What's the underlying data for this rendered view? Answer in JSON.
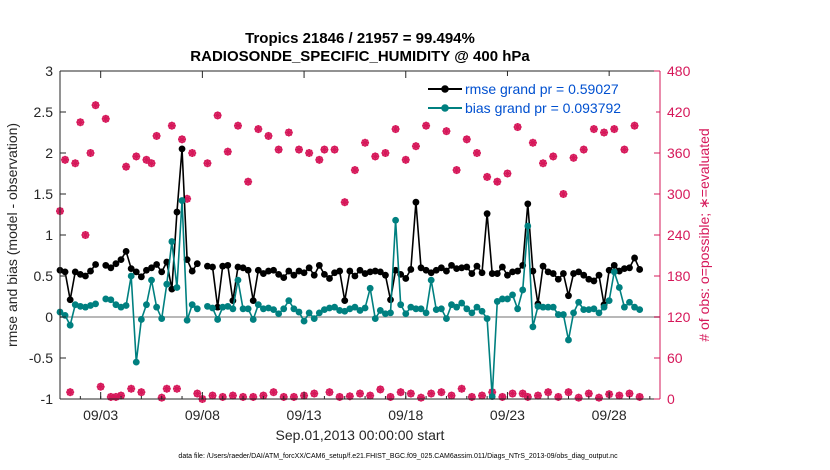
{
  "chart_data": {
    "type": "line",
    "title": "Tropics 21846 / 21957 = 99.494%",
    "subtitle": "RADIOSONDE_SPECIFIC_HUMIDITY @ 400 hPa",
    "xlabel": "Sep.01,2013 00:00:00 start",
    "ylabel_left": "rmse and bias (model - observation)",
    "ylabel_right": "# of obs: o=possible; ∗=evaluated",
    "ylim_left": [
      -1,
      3
    ],
    "ylim_right": [
      0,
      480
    ],
    "xlim": [
      1.0,
      30.5
    ],
    "yticks_left": [
      "-1",
      "-0.5",
      "0",
      "0.5",
      "1",
      "1.5",
      "2",
      "2.5",
      "3"
    ],
    "yticks_right": [
      "0",
      "60",
      "120",
      "180",
      "240",
      "300",
      "360",
      "420",
      "480"
    ],
    "xticks": [
      {
        "day": 3,
        "label": "09/03"
      },
      {
        "day": 8,
        "label": "09/08"
      },
      {
        "day": 13,
        "label": "09/13"
      },
      {
        "day": 18,
        "label": "09/18"
      },
      {
        "day": 23,
        "label": "09/23"
      },
      {
        "day": 28,
        "label": "09/28"
      }
    ],
    "legend": [
      "rmse grand pr = 0.59027",
      "bias grand pr = 0.093792"
    ],
    "colors": {
      "rmse": "#000000",
      "bias": "#008080",
      "obs": "#D6185A",
      "zero": "#B8B8B8",
      "legend_text": "#0050D0"
    },
    "rmse": [
      0.57,
      0.55,
      0.21,
      0.55,
      0.52,
      0.5,
      0.56,
      0.64,
      null,
      0.63,
      0.6,
      0.65,
      0.7,
      0.8,
      0.59,
      0.55,
      0.49,
      0.57,
      0.6,
      0.64,
      0.55,
      0.67,
      0.34,
      1.28,
      2.05,
      0.7,
      0.56,
      0.65,
      null,
      0.62,
      0.61,
      0.12,
      0.62,
      0.63,
      0.2,
      0.61,
      0.6,
      0.57,
      0.2,
      0.57,
      0.53,
      0.56,
      0.57,
      0.52,
      0.48,
      0.56,
      0.51,
      0.56,
      0.54,
      0.6,
      0.51,
      0.63,
      0.52,
      0.47,
      0.54,
      0.56,
      0.2,
      0.56,
      0.5,
      0.57,
      0.53,
      0.55,
      0.56,
      0.55,
      0.51,
      0.21,
      0.57,
      0.52,
      0.47,
      0.58,
      1.4,
      0.6,
      0.57,
      0.54,
      0.57,
      0.6,
      0.56,
      0.63,
      0.59,
      0.6,
      0.61,
      0.53,
      0.62,
      0.54,
      1.26,
      0.53,
      0.53,
      0.61,
      0.51,
      0.55,
      0.56,
      0.63,
      1.38,
      0.56,
      0.16,
      0.62,
      0.55,
      0.53,
      0.46,
      0.53,
      0.26,
      0.53,
      0.55,
      0.51,
      0.46,
      0.44,
      0.51,
      0.15,
      0.57,
      0.63,
      0.56,
      0.59,
      0.6,
      0.72,
      0.58
    ],
    "bias": [
      0.06,
      0.02,
      -0.1,
      0.15,
      0.13,
      0.12,
      0.14,
      0.16,
      null,
      0.22,
      0.21,
      0.15,
      0.12,
      0.14,
      0.5,
      -0.55,
      -0.03,
      0.15,
      0.45,
      0.12,
      -0.02,
      0.4,
      0.92,
      0.36,
      1.42,
      -0.04,
      0.15,
      0.1,
      null,
      0.13,
      0.11,
      -0.03,
      0.12,
      0.13,
      0.1,
      0.45,
      0.1,
      0.1,
      -0.03,
      0.15,
      0.1,
      0.11,
      0.09,
      0.04,
      0.1,
      0.2,
      0.1,
      0.06,
      -0.05,
      0.05,
      -0.02,
      0.05,
      0.09,
      0.11,
      0.12,
      0.08,
      0.07,
      0.1,
      0.12,
      0.08,
      0.11,
      0.35,
      -0.02,
      0.08,
      0.04,
      0.05,
      1.18,
      0.15,
      0.04,
      0.12,
      0.1,
      0.1,
      0.05,
      0.45,
      0.09,
      0.1,
      -0.02,
      0.15,
      0.12,
      0.17,
      0.1,
      0.05,
      0.12,
      0.07,
      -0.02,
      -0.97,
      0.19,
      0.22,
      0.22,
      0.27,
      0.1,
      0.33,
      1.11,
      -0.12,
      0.13,
      0.12,
      0.12,
      0.12,
      0.03,
      0.03,
      -0.28,
      0.05,
      0.18,
      0.09,
      0.09,
      0.1,
      0.05,
      0.12,
      0.2,
      0.55,
      0.36,
      0.12,
      0.18,
      0.12,
      0.09
    ],
    "obs_possible": [
      275,
      350,
      10,
      345,
      405,
      240,
      360,
      430,
      18,
      410,
      3,
      3,
      5,
      340,
      15,
      355,
      10,
      350,
      345,
      385,
      2,
      15,
      400,
      15,
      380,
      293,
      360,
      8,
      0,
      345,
      5,
      415,
      3,
      362,
      5,
      400,
      3,
      318,
      3,
      395,
      5,
      385,
      10,
      365,
      3,
      390,
      3,
      365,
      5,
      360,
      8,
      350,
      365,
      10,
      365,
      3,
      288,
      4,
      335,
      8,
      375,
      5,
      355,
      14,
      360,
      3,
      395,
      10,
      350,
      8,
      370,
      2,
      400,
      8,
      415,
      10,
      392,
      5,
      335,
      15,
      380,
      3,
      360,
      5,
      325,
      10,
      318,
      3,
      330,
      8,
      398,
      8,
      3,
      375,
      5,
      345,
      10,
      355,
      3,
      300,
      10,
      353,
      2,
      365,
      8,
      395,
      2,
      390,
      7,
      395,
      5,
      365,
      8,
      400,
      3
    ],
    "obs_evaluated": [
      275,
      350,
      10,
      345,
      405,
      240,
      360,
      430,
      18,
      410,
      3,
      3,
      5,
      340,
      15,
      355,
      10,
      350,
      345,
      385,
      2,
      15,
      400,
      15,
      380,
      293,
      360,
      8,
      0,
      345,
      5,
      415,
      3,
      362,
      5,
      400,
      3,
      318,
      3,
      395,
      5,
      385,
      10,
      365,
      3,
      390,
      3,
      365,
      5,
      360,
      8,
      350,
      365,
      10,
      365,
      3,
      288,
      4,
      335,
      8,
      375,
      5,
      355,
      14,
      360,
      3,
      395,
      10,
      350,
      8,
      370,
      2,
      400,
      8,
      415,
      10,
      392,
      5,
      335,
      15,
      380,
      3,
      360,
      5,
      325,
      10,
      318,
      3,
      330,
      8,
      398,
      8,
      3,
      375,
      5,
      345,
      10,
      355,
      3,
      300,
      10,
      353,
      2,
      365,
      8,
      395,
      2,
      390,
      7,
      395,
      5,
      365,
      8,
      400,
      3
    ]
  },
  "footer": {
    "data_file": "data file: /Users/raeder/DAI/ATM_forcXX/CAM6_setup/f.e21.FHIST_BGC.f09_025.CAM6assim.011/Diags_NTrS_2013-09/obs_diag_output.nc"
  }
}
